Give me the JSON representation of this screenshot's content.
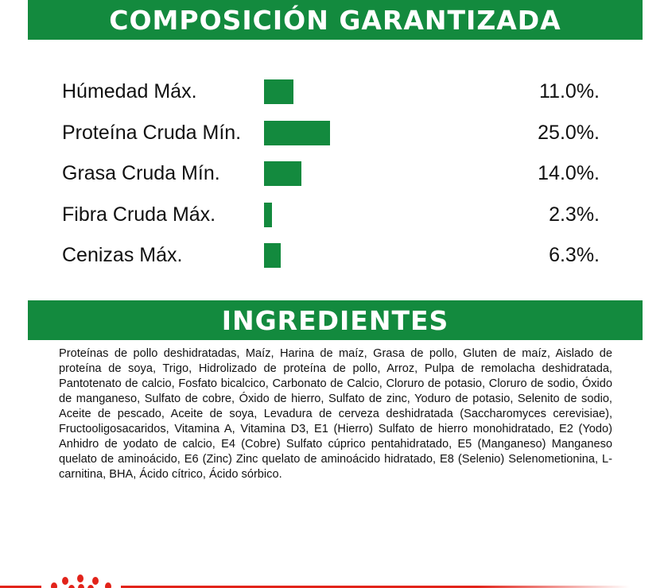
{
  "composition": {
    "title": "COMPOSICIÓN GARANTIZADA",
    "bar_color": "#138a3e",
    "rows": [
      {
        "label": "Húmedad Máx.",
        "percent": 11.0,
        "value": "11.0%."
      },
      {
        "label": "Proteína Cruda Mín.",
        "percent": 25.0,
        "value": "25.0%."
      },
      {
        "label": "Grasa Cruda Mín.",
        "percent": 14.0,
        "value": "14.0%."
      },
      {
        "label": "Fibra Cruda Máx.",
        "percent": 2.3,
        "value": "2.3%."
      },
      {
        "label": "Cenizas Máx.",
        "percent": 6.3,
        "value": "6.3%."
      }
    ]
  },
  "ingredients": {
    "title": "INGREDIENTES",
    "text": "Proteínas de pollo deshidratadas, Maíz, Harina de maíz, Grasa de pollo, Gluten de maíz, Aislado de proteína de soya, Trigo, Hidrolizado de proteína de pollo, Arroz, Pulpa de remolacha deshidratada, Pantotenato de calcio, Fosfato bicalcico, Carbonato de Calcio, Cloruro de potasio, Cloruro de sodio, Óxido de manganeso, Sulfato de cobre, Óxido de hierro, Sulfato de zinc, Yoduro de potasio, Selenito de sodio, Aceite de pescado, Aceite de soya, Levadura de cerveza deshidratada (Saccharomyces cerevisiae), Fructooligosacaridos, Vitamina A, Vitamina D3, E1 (Hierro) Sulfato de hierro monohidratado, E2 (Yodo) Anhidro de yodato de calcio, E4 (Cobre) Sulfato cúprico pentahidratado, E5 (Manganeso) Manganeso quelato de aminoácido, E6 (Zinc) Zinc quelato de aminoácido hidratado, E8 (Selenio) Selenometionina, L-carnitina, BHA, Ácido cítrico, Ácido sórbico."
  },
  "footer": {
    "accent_color": "#e2231a",
    "logo": "crown-dots-logo"
  }
}
